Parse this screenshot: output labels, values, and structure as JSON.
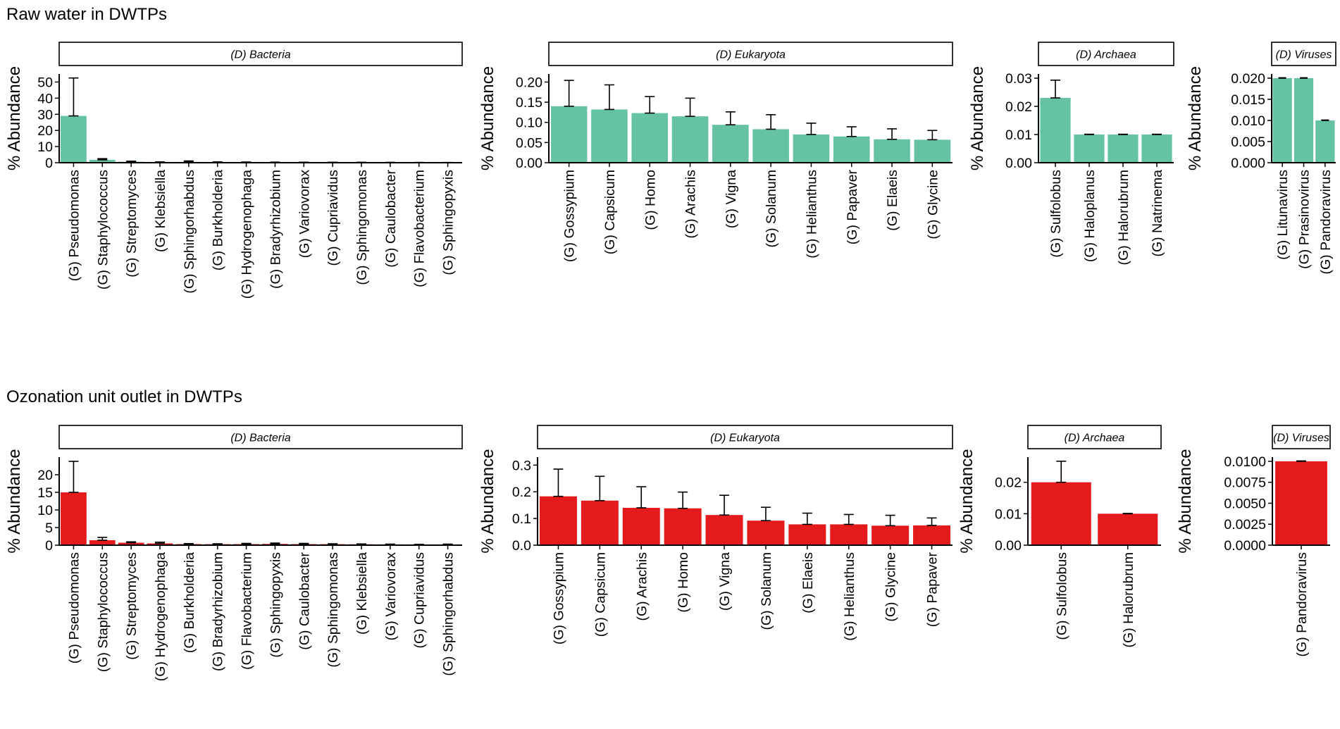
{
  "rows": [
    {
      "title": "Raw water in DWTPs",
      "fill": "#66c2a5",
      "chart_data": [
        {
          "type": "bar",
          "facet": "(D) Bacteria",
          "ylabel": "% Abundance",
          "ylim": [
            0,
            55
          ],
          "yticks": [
            0,
            10,
            20,
            30,
            40,
            50
          ],
          "ytick_labels": [
            "0",
            "10",
            "20",
            "30",
            "40",
            "50"
          ],
          "categories": [
            "(G) Pseudomonas",
            "(G) Staphylococcus",
            "(G) Streptomyces",
            "(G) Klebsiella",
            "(G) Sphingorhabdus",
            "(G) Burkholderia",
            "(G) Hydrogenophaga",
            "(G) Bradyrhizobium",
            "(G) Variovorax",
            "(G) Cupriavidus",
            "(G) Sphingomonas",
            "(G) Caulobacter",
            "(G) Flavobacterium",
            "(G) Sphingopyxis"
          ],
          "values": [
            29,
            1.8,
            0.6,
            0.35,
            0.5,
            0.3,
            0.28,
            0.25,
            0.22,
            0.2,
            0.18,
            0.15,
            0.12,
            0.1
          ],
          "error": [
            23.5,
            0.7,
            0.35,
            0.15,
            0.6,
            0.2,
            0.15,
            0.12,
            0.1,
            0.08,
            0.07,
            0.06,
            0.05,
            0.05
          ]
        },
        {
          "type": "bar",
          "facet": "(D) Eukaryota",
          "ylabel": "% Abundance",
          "ylim": [
            0,
            0.22
          ],
          "yticks": [
            0,
            0.05,
            0.1,
            0.15,
            0.2
          ],
          "ytick_labels": [
            "0.00",
            "0.05",
            "0.10",
            "0.15",
            "0.20"
          ],
          "categories": [
            "(G) Gossypium",
            "(G) Capsicum",
            "(G) Homo",
            "(G) Arachis",
            "(G) Vigna",
            "(G) Solanum",
            "(G) Helianthus",
            "(G) Papaver",
            "(G) Elaeis",
            "(G) Glycine"
          ],
          "values": [
            0.14,
            0.132,
            0.123,
            0.115,
            0.094,
            0.083,
            0.07,
            0.065,
            0.058,
            0.057
          ],
          "error": [
            0.064,
            0.061,
            0.041,
            0.045,
            0.032,
            0.036,
            0.028,
            0.024,
            0.026,
            0.023
          ]
        },
        {
          "type": "bar",
          "facet": "(D) Archaea",
          "ylabel": "% Abundance",
          "ylim": [
            0,
            0.0315
          ],
          "yticks": [
            0,
            0.01,
            0.02,
            0.03
          ],
          "ytick_labels": [
            "0.00",
            "0.01",
            "0.02",
            "0.03"
          ],
          "categories": [
            "(G) Sulfolobus",
            "(G) Haloplanus",
            "(G) Halorubrum",
            "(G) Natrinema"
          ],
          "values": [
            0.023,
            0.01,
            0.01,
            0.01
          ],
          "error": [
            0.0063,
            0.0001,
            0.0001,
            0.0001
          ]
        },
        {
          "type": "bar",
          "facet": "(D) Viruses",
          "ylabel": "% Abundance",
          "ylim": [
            0,
            0.021
          ],
          "yticks": [
            0,
            0.005,
            0.01,
            0.015,
            0.02
          ],
          "ytick_labels": [
            "0.000",
            "0.005",
            "0.010",
            "0.015",
            "0.020"
          ],
          "categories": [
            "(G) Litunavirus",
            "(G) Prasinovirus",
            "(G) Pandoravirus"
          ],
          "values": [
            0.02,
            0.02,
            0.01
          ],
          "error": [
            0.0001,
            0.0001,
            0.0001
          ]
        }
      ]
    },
    {
      "title": "Ozonation unit outlet in DWTPs",
      "fill": "#e41a1c",
      "chart_data": [
        {
          "type": "bar",
          "facet": "(D) Bacteria",
          "ylabel": "% Abundance",
          "ylim": [
            0,
            25
          ],
          "yticks": [
            0,
            5,
            10,
            15,
            20
          ],
          "ytick_labels": [
            "0",
            "5",
            "10",
            "15",
            "20"
          ],
          "categories": [
            "(G) Pseudomonas",
            "(G) Staphylococcus",
            "(G) Streptomyces",
            "(G) Hydrogenophaga",
            "(G) Burkholderia",
            "(G) Bradyrhizobium",
            "(G) Flavobacterium",
            "(G) Sphingopyxis",
            "(G) Caulobacter",
            "(G) Sphingomonas",
            "(G) Klebsiella",
            "(G) Variovorax",
            "(G) Cupriavidus",
            "(G) Sphingorhabdus"
          ],
          "values": [
            15,
            1.4,
            0.7,
            0.5,
            0.3,
            0.28,
            0.3,
            0.35,
            0.3,
            0.28,
            0.25,
            0.22,
            0.18,
            0.2
          ],
          "error": [
            8.8,
            0.8,
            0.25,
            0.35,
            0.15,
            0.12,
            0.2,
            0.25,
            0.2,
            0.12,
            0.1,
            0.08,
            0.06,
            0.1
          ]
        },
        {
          "type": "bar",
          "facet": "(D) Eukaryota",
          "ylabel": "% Abundance",
          "ylim": [
            0,
            0.33
          ],
          "yticks": [
            0,
            0.1,
            0.2,
            0.3
          ],
          "ytick_labels": [
            "0.0",
            "0.1",
            "0.2",
            "0.3"
          ],
          "categories": [
            "(G) Gossypium",
            "(G) Capsicum",
            "(G) Arachis",
            "(G) Homo",
            "(G) Vigna",
            "(G) Solanum",
            "(G) Elaeis",
            "(G) Helianthus",
            "(G) Glycine",
            "(G) Papaver"
          ],
          "values": [
            0.183,
            0.167,
            0.14,
            0.138,
            0.113,
            0.092,
            0.078,
            0.078,
            0.073,
            0.074
          ],
          "error": [
            0.102,
            0.091,
            0.079,
            0.061,
            0.074,
            0.05,
            0.042,
            0.037,
            0.039,
            0.028
          ]
        },
        {
          "type": "bar",
          "facet": "(D) Archaea",
          "ylabel": "% Abundance",
          "ylim": [
            0,
            0.028
          ],
          "yticks": [
            0,
            0.01,
            0.02
          ],
          "ytick_labels": [
            "0.00",
            "0.01",
            "0.02"
          ],
          "categories": [
            "(G) Sulfolobus",
            "(G) Halorubrum"
          ],
          "values": [
            0.02,
            0.01
          ],
          "error": [
            0.0067,
            0.0001
          ]
        },
        {
          "type": "bar",
          "facet": "(D) Viruses",
          "ylabel": "% Abundance",
          "ylim": [
            0,
            0.0105
          ],
          "yticks": [
            0,
            0.0025,
            0.005,
            0.0075,
            0.01
          ],
          "ytick_labels": [
            "0.0000",
            "0.0025",
            "0.0050",
            "0.0075",
            "0.0100"
          ],
          "categories": [
            "(G) Pandoravirus"
          ],
          "values": [
            0.01
          ],
          "error": [
            5e-05
          ]
        }
      ]
    }
  ]
}
